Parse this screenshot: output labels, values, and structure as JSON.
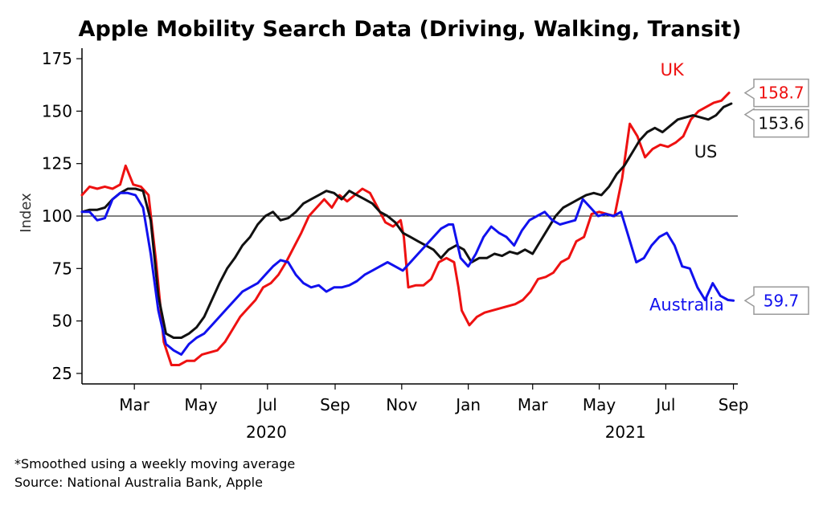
{
  "chart_data": {
    "type": "line",
    "title": "Apple Mobility Search Data (Driving, Walking, Transit)",
    "xlabel": "",
    "ylabel": "Index",
    "ylim": [
      20,
      180
    ],
    "yticks": [
      25,
      50,
      75,
      100,
      125,
      150,
      175
    ],
    "reference_line": 100,
    "x_range": [
      "2020-01-13",
      "2021-09-05"
    ],
    "month_ticks": [
      {
        "label": "Mar",
        "date": "2020-03-01"
      },
      {
        "label": "May",
        "date": "2020-05-01"
      },
      {
        "label": "Jul",
        "date": "2020-07-01"
      },
      {
        "label": "Sep",
        "date": "2020-09-01"
      },
      {
        "label": "Nov",
        "date": "2020-11-01"
      },
      {
        "label": "Jan",
        "date": "2021-01-01"
      },
      {
        "label": "Mar",
        "date": "2021-03-01"
      },
      {
        "label": "May",
        "date": "2021-05-01"
      },
      {
        "label": "Jul",
        "date": "2021-07-01"
      },
      {
        "label": "Sep",
        "date": "2021-09-01"
      }
    ],
    "year_labels": [
      {
        "label": "2020",
        "date": "2020-06-30"
      },
      {
        "label": "2021",
        "date": "2021-05-25"
      }
    ],
    "series": [
      {
        "name": "UK",
        "color": "#ee1111",
        "last_value": "158.7",
        "points": [
          [
            "2020-01-13",
            110
          ],
          [
            "2020-01-20",
            114
          ],
          [
            "2020-01-27",
            113
          ],
          [
            "2020-02-03",
            114
          ],
          [
            "2020-02-10",
            113
          ],
          [
            "2020-02-17",
            115
          ],
          [
            "2020-02-22",
            124
          ],
          [
            "2020-02-29",
            115
          ],
          [
            "2020-03-07",
            114
          ],
          [
            "2020-03-14",
            110
          ],
          [
            "2020-03-21",
            78
          ],
          [
            "2020-03-28",
            40
          ],
          [
            "2020-04-04",
            29
          ],
          [
            "2020-04-11",
            29
          ],
          [
            "2020-04-18",
            31
          ],
          [
            "2020-04-25",
            31
          ],
          [
            "2020-05-02",
            34
          ],
          [
            "2020-05-09",
            35
          ],
          [
            "2020-05-16",
            36
          ],
          [
            "2020-05-23",
            40
          ],
          [
            "2020-05-30",
            46
          ],
          [
            "2020-06-06",
            52
          ],
          [
            "2020-06-13",
            56
          ],
          [
            "2020-06-20",
            60
          ],
          [
            "2020-06-27",
            66
          ],
          [
            "2020-07-04",
            68
          ],
          [
            "2020-07-11",
            72
          ],
          [
            "2020-07-18",
            78
          ],
          [
            "2020-07-25",
            85
          ],
          [
            "2020-08-01",
            92
          ],
          [
            "2020-08-08",
            100
          ],
          [
            "2020-08-15",
            104
          ],
          [
            "2020-08-22",
            108
          ],
          [
            "2020-08-29",
            104
          ],
          [
            "2020-09-05",
            110
          ],
          [
            "2020-09-12",
            107
          ],
          [
            "2020-09-19",
            110
          ],
          [
            "2020-09-26",
            113
          ],
          [
            "2020-10-03",
            111
          ],
          [
            "2020-10-10",
            104
          ],
          [
            "2020-10-17",
            97
          ],
          [
            "2020-10-24",
            95
          ],
          [
            "2020-10-31",
            98
          ],
          [
            "2020-11-03",
            90
          ],
          [
            "2020-11-07",
            66
          ],
          [
            "2020-11-14",
            67
          ],
          [
            "2020-11-21",
            67
          ],
          [
            "2020-11-28",
            70
          ],
          [
            "2020-12-05",
            78
          ],
          [
            "2020-12-12",
            80
          ],
          [
            "2020-12-19",
            78
          ],
          [
            "2020-12-23",
            66
          ],
          [
            "2020-12-26",
            55
          ],
          [
            "2021-01-02",
            48
          ],
          [
            "2021-01-09",
            52
          ],
          [
            "2021-01-16",
            54
          ],
          [
            "2021-01-30",
            56
          ],
          [
            "2021-02-13",
            58
          ],
          [
            "2021-02-20",
            60
          ],
          [
            "2021-02-27",
            64
          ],
          [
            "2021-03-06",
            70
          ],
          [
            "2021-03-13",
            71
          ],
          [
            "2021-03-20",
            73
          ],
          [
            "2021-03-27",
            78
          ],
          [
            "2021-04-03",
            80
          ],
          [
            "2021-04-10",
            88
          ],
          [
            "2021-04-17",
            90
          ],
          [
            "2021-04-24",
            101
          ],
          [
            "2021-05-01",
            102
          ],
          [
            "2021-05-08",
            101
          ],
          [
            "2021-05-15",
            100
          ],
          [
            "2021-05-22",
            118
          ],
          [
            "2021-05-29",
            144
          ],
          [
            "2021-06-05",
            138
          ],
          [
            "2021-06-12",
            128
          ],
          [
            "2021-06-19",
            132
          ],
          [
            "2021-06-26",
            134
          ],
          [
            "2021-07-03",
            133
          ],
          [
            "2021-07-10",
            135
          ],
          [
            "2021-07-17",
            138
          ],
          [
            "2021-07-24",
            146
          ],
          [
            "2021-07-31",
            150
          ],
          [
            "2021-08-07",
            152
          ],
          [
            "2021-08-14",
            154
          ],
          [
            "2021-08-21",
            155
          ],
          [
            "2021-08-28",
            158.7
          ]
        ]
      },
      {
        "name": "US",
        "color": "#111111",
        "last_value": "153.6",
        "points": [
          [
            "2020-01-13",
            102
          ],
          [
            "2020-01-20",
            103
          ],
          [
            "2020-01-27",
            103
          ],
          [
            "2020-02-03",
            104
          ],
          [
            "2020-02-10",
            108
          ],
          [
            "2020-02-17",
            111
          ],
          [
            "2020-02-24",
            113
          ],
          [
            "2020-03-02",
            113
          ],
          [
            "2020-03-09",
            112
          ],
          [
            "2020-03-16",
            98
          ],
          [
            "2020-03-23",
            62
          ],
          [
            "2020-03-30",
            44
          ],
          [
            "2020-04-06",
            42
          ],
          [
            "2020-04-13",
            42
          ],
          [
            "2020-04-20",
            44
          ],
          [
            "2020-04-27",
            47
          ],
          [
            "2020-05-04",
            52
          ],
          [
            "2020-05-11",
            60
          ],
          [
            "2020-05-18",
            68
          ],
          [
            "2020-05-25",
            75
          ],
          [
            "2020-06-01",
            80
          ],
          [
            "2020-06-08",
            86
          ],
          [
            "2020-06-15",
            90
          ],
          [
            "2020-06-22",
            96
          ],
          [
            "2020-06-29",
            100
          ],
          [
            "2020-07-06",
            102
          ],
          [
            "2020-07-13",
            98
          ],
          [
            "2020-07-20",
            99
          ],
          [
            "2020-07-27",
            102
          ],
          [
            "2020-08-03",
            106
          ],
          [
            "2020-08-10",
            108
          ],
          [
            "2020-08-17",
            110
          ],
          [
            "2020-08-24",
            112
          ],
          [
            "2020-08-31",
            111
          ],
          [
            "2020-09-07",
            108
          ],
          [
            "2020-09-14",
            112
          ],
          [
            "2020-09-21",
            110
          ],
          [
            "2020-09-28",
            108
          ],
          [
            "2020-10-05",
            106
          ],
          [
            "2020-10-12",
            102
          ],
          [
            "2020-10-19",
            100
          ],
          [
            "2020-10-26",
            97
          ],
          [
            "2020-11-02",
            92
          ],
          [
            "2020-11-09",
            90
          ],
          [
            "2020-11-16",
            88
          ],
          [
            "2020-11-23",
            86
          ],
          [
            "2020-11-30",
            84
          ],
          [
            "2020-12-07",
            80
          ],
          [
            "2020-12-14",
            84
          ],
          [
            "2020-12-21",
            86
          ],
          [
            "2020-12-28",
            84
          ],
          [
            "2021-01-04",
            78
          ],
          [
            "2021-01-11",
            80
          ],
          [
            "2021-01-18",
            80
          ],
          [
            "2021-01-25",
            82
          ],
          [
            "2021-02-01",
            81
          ],
          [
            "2021-02-08",
            83
          ],
          [
            "2021-02-15",
            82
          ],
          [
            "2021-02-22",
            84
          ],
          [
            "2021-03-01",
            82
          ],
          [
            "2021-03-08",
            88
          ],
          [
            "2021-03-15",
            94
          ],
          [
            "2021-03-22",
            100
          ],
          [
            "2021-03-29",
            104
          ],
          [
            "2021-04-05",
            106
          ],
          [
            "2021-04-12",
            108
          ],
          [
            "2021-04-19",
            110
          ],
          [
            "2021-04-26",
            111
          ],
          [
            "2021-05-03",
            110
          ],
          [
            "2021-05-10",
            114
          ],
          [
            "2021-05-17",
            120
          ],
          [
            "2021-05-24",
            124
          ],
          [
            "2021-05-31",
            130
          ],
          [
            "2021-06-07",
            136
          ],
          [
            "2021-06-14",
            140
          ],
          [
            "2021-06-21",
            142
          ],
          [
            "2021-06-28",
            140
          ],
          [
            "2021-07-05",
            143
          ],
          [
            "2021-07-12",
            146
          ],
          [
            "2021-07-19",
            147
          ],
          [
            "2021-07-26",
            148
          ],
          [
            "2021-08-02",
            147
          ],
          [
            "2021-08-09",
            146
          ],
          [
            "2021-08-16",
            148
          ],
          [
            "2021-08-23",
            152
          ],
          [
            "2021-08-30",
            153.6
          ]
        ]
      },
      {
        "name": "Australia",
        "color": "#1111ee",
        "last_value": "59.7",
        "points": [
          [
            "2020-01-13",
            102
          ],
          [
            "2020-01-20",
            102
          ],
          [
            "2020-01-27",
            98
          ],
          [
            "2020-02-03",
            99
          ],
          [
            "2020-02-10",
            108
          ],
          [
            "2020-02-17",
            111
          ],
          [
            "2020-02-24",
            111
          ],
          [
            "2020-03-02",
            110
          ],
          [
            "2020-03-09",
            104
          ],
          [
            "2020-03-16",
            82
          ],
          [
            "2020-03-23",
            55
          ],
          [
            "2020-03-30",
            39
          ],
          [
            "2020-04-06",
            36
          ],
          [
            "2020-04-13",
            34
          ],
          [
            "2020-04-20",
            39
          ],
          [
            "2020-04-27",
            42
          ],
          [
            "2020-05-04",
            44
          ],
          [
            "2020-05-11",
            48
          ],
          [
            "2020-05-18",
            52
          ],
          [
            "2020-05-25",
            56
          ],
          [
            "2020-06-01",
            60
          ],
          [
            "2020-06-08",
            64
          ],
          [
            "2020-06-15",
            66
          ],
          [
            "2020-06-22",
            68
          ],
          [
            "2020-06-29",
            72
          ],
          [
            "2020-07-06",
            76
          ],
          [
            "2020-07-13",
            79
          ],
          [
            "2020-07-20",
            78
          ],
          [
            "2020-07-27",
            72
          ],
          [
            "2020-08-03",
            68
          ],
          [
            "2020-08-10",
            66
          ],
          [
            "2020-08-17",
            67
          ],
          [
            "2020-08-24",
            64
          ],
          [
            "2020-08-31",
            66
          ],
          [
            "2020-09-07",
            66
          ],
          [
            "2020-09-14",
            67
          ],
          [
            "2020-09-21",
            69
          ],
          [
            "2020-09-28",
            72
          ],
          [
            "2020-10-05",
            74
          ],
          [
            "2020-10-12",
            76
          ],
          [
            "2020-10-19",
            78
          ],
          [
            "2020-10-26",
            76
          ],
          [
            "2020-11-02",
            74
          ],
          [
            "2020-11-09",
            78
          ],
          [
            "2020-11-16",
            82
          ],
          [
            "2020-11-23",
            86
          ],
          [
            "2020-11-30",
            90
          ],
          [
            "2020-12-07",
            94
          ],
          [
            "2020-12-14",
            96
          ],
          [
            "2020-12-18",
            96
          ],
          [
            "2020-12-25",
            80
          ],
          [
            "2021-01-01",
            76
          ],
          [
            "2021-01-08",
            82
          ],
          [
            "2021-01-15",
            90
          ],
          [
            "2021-01-22",
            95
          ],
          [
            "2021-01-29",
            92
          ],
          [
            "2021-02-05",
            90
          ],
          [
            "2021-02-12",
            86
          ],
          [
            "2021-02-19",
            93
          ],
          [
            "2021-02-26",
            98
          ],
          [
            "2021-03-05",
            100
          ],
          [
            "2021-03-12",
            102
          ],
          [
            "2021-03-19",
            98
          ],
          [
            "2021-03-26",
            96
          ],
          [
            "2021-04-02",
            97
          ],
          [
            "2021-04-09",
            98
          ],
          [
            "2021-04-16",
            108
          ],
          [
            "2021-04-23",
            104
          ],
          [
            "2021-04-30",
            100
          ],
          [
            "2021-05-07",
            101
          ],
          [
            "2021-05-14",
            100
          ],
          [
            "2021-05-21",
            102
          ],
          [
            "2021-05-28",
            90
          ],
          [
            "2021-06-04",
            78
          ],
          [
            "2021-06-11",
            80
          ],
          [
            "2021-06-18",
            86
          ],
          [
            "2021-06-25",
            90
          ],
          [
            "2021-07-02",
            92
          ],
          [
            "2021-07-09",
            86
          ],
          [
            "2021-07-16",
            76
          ],
          [
            "2021-07-23",
            75
          ],
          [
            "2021-07-30",
            66
          ],
          [
            "2021-08-06",
            60
          ],
          [
            "2021-08-13",
            68
          ],
          [
            "2021-08-20",
            62
          ],
          [
            "2021-08-27",
            60
          ],
          [
            "2021-09-01",
            59.7
          ]
        ]
      }
    ],
    "series_labels": {
      "UK": {
        "text": "UK",
        "date": "2021-06-26",
        "y": 167
      },
      "US": {
        "text": "US",
        "date": "2021-07-27",
        "y": 128
      },
      "Australia": {
        "text": "Australia",
        "date": "2021-06-16",
        "y": 55
      }
    },
    "callouts": [
      {
        "series": "UK",
        "text": "158.7"
      },
      {
        "series": "US",
        "text": "153.6"
      },
      {
        "series": "Australia",
        "text": "59.7"
      }
    ],
    "notes": [
      "*Smoothed using a weekly moving average",
      "Source: National Australia Bank, Apple"
    ]
  }
}
